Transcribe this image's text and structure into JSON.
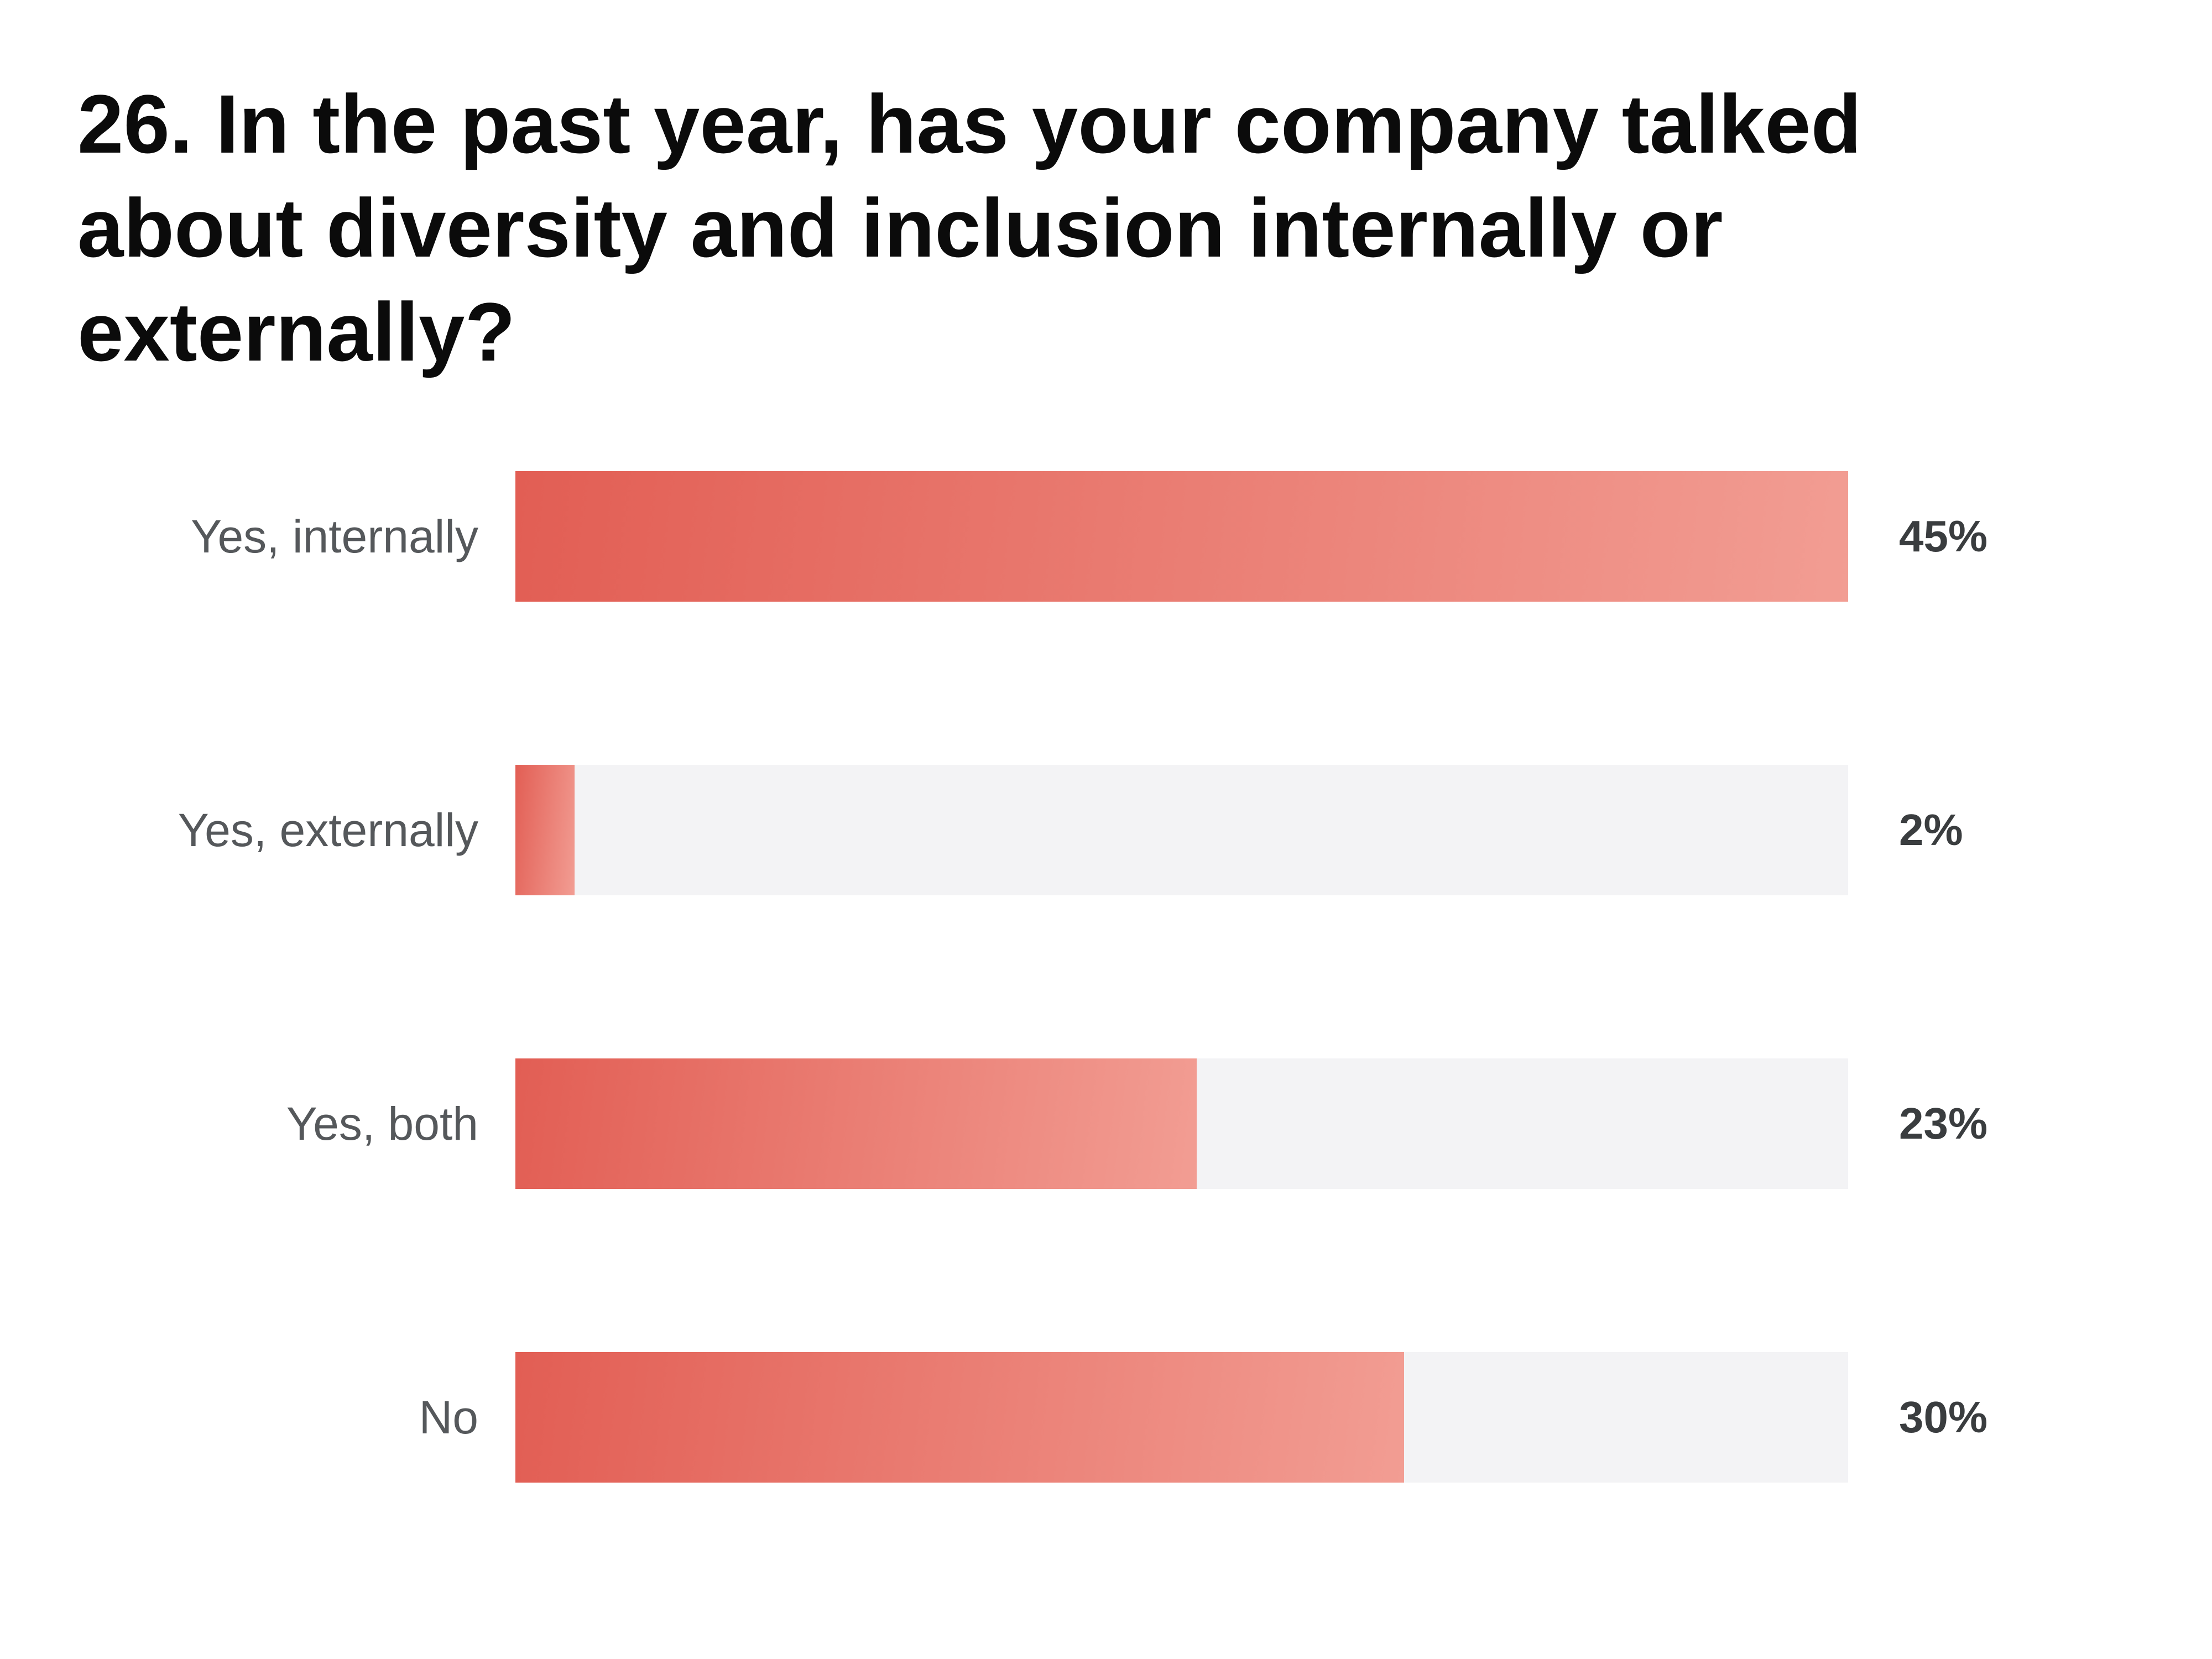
{
  "title": {
    "lines": [
      "26. In the past year, has your company talked",
      "about diversity and inclusion internally or",
      "externally?"
    ]
  },
  "chart_data": {
    "type": "bar",
    "orientation": "horizontal",
    "title": "26. In the past year, has your company talked about diversity and inclusion internally or externally?",
    "categories": [
      "Yes, internally",
      "Yes, externally",
      "Yes, both",
      "No"
    ],
    "values": [
      45,
      2,
      23,
      30
    ],
    "value_labels": [
      "45%",
      "2%",
      "23%",
      "30%"
    ],
    "unit": "percent",
    "xlim": [
      0,
      45
    ],
    "bars_scaled_to_max": true,
    "grid": false,
    "legend": "none",
    "bar_gradient_start": "#e25e54",
    "bar_gradient_end": "#f29d93",
    "track_color": "#f3f3f5",
    "category_label_color": "#55585b",
    "value_label_color": "#3a3d3f",
    "title_color": "#0b0b0b"
  },
  "rows": [
    {
      "label": "Yes, internally",
      "value_label": "45%",
      "width_pct": 100
    },
    {
      "label": "Yes, externally",
      "value_label": "2%",
      "width_pct": 4.44
    },
    {
      "label": "Yes, both",
      "value_label": "23%",
      "width_pct": 51.11
    },
    {
      "label": "No",
      "value_label": "30%",
      "width_pct": 66.67
    }
  ]
}
